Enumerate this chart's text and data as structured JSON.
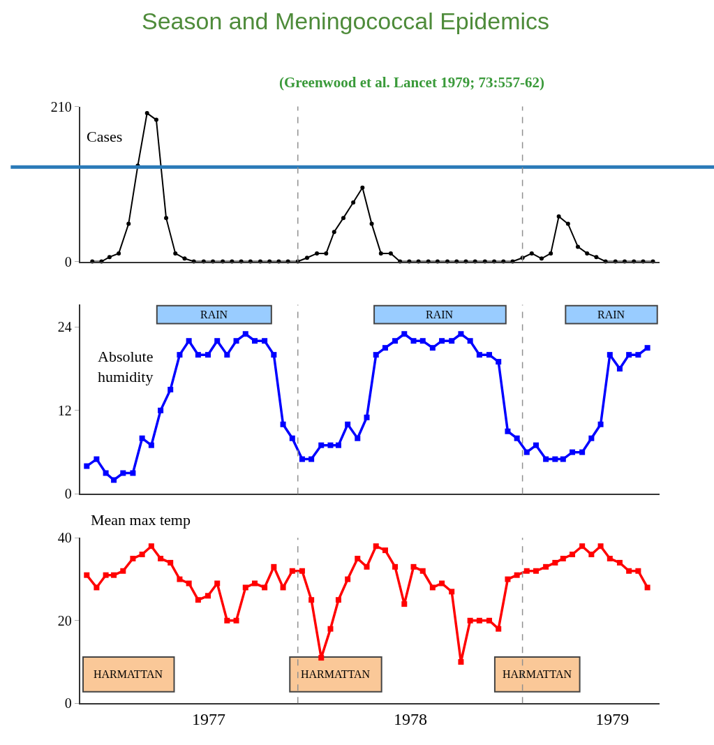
{
  "chart_data": [
    {
      "type": "line",
      "title": "Season and Meningococcal Epidemics",
      "subtitle": "(Greenwood et al. Lancet 1979; 73:557-62)",
      "ylabel": "Cases",
      "x": [
        "1977-02-01",
        "1977-02-16",
        "1977-03-01",
        "1977-03-16",
        "1977-04-01",
        "1977-04-16",
        "1977-05-01",
        "1977-05-16",
        "1977-06-01",
        "1977-06-16",
        "1977-07-01",
        "1977-07-16",
        "1977-08-01",
        "1977-08-16",
        "1977-09-01",
        "1977-09-16",
        "1977-10-01",
        "1977-10-16",
        "1977-11-01",
        "1977-11-16",
        "1977-12-01",
        "1977-12-16",
        "1978-01-01",
        "1978-01-16",
        "1978-02-01",
        "1978-02-16",
        "1978-03-01",
        "1978-03-16",
        "1978-04-01",
        "1978-04-16",
        "1978-05-01",
        "1978-05-16",
        "1978-06-01",
        "1978-06-16",
        "1978-07-01",
        "1978-07-16",
        "1978-08-01",
        "1978-08-16",
        "1978-09-01",
        "1978-09-16",
        "1978-10-01",
        "1978-10-16",
        "1978-11-01",
        "1978-11-16",
        "1978-12-01",
        "1978-12-16",
        "1979-01-01",
        "1979-01-16",
        "1979-02-01",
        "1979-02-16",
        "1979-03-01",
        "1979-03-16",
        "1979-04-01",
        "1979-04-16",
        "1979-05-01",
        "1979-05-16",
        "1979-06-01",
        "1979-06-16",
        "1979-07-01",
        "1979-07-16",
        "1979-08-01"
      ],
      "series": [
        {
          "color": "#000000",
          "values": [
            0,
            0,
            6,
            11,
            51,
            130,
            201,
            192,
            59,
            11,
            4,
            0,
            0,
            0,
            0,
            0,
            0,
            0,
            0,
            0,
            0,
            0,
            0,
            5,
            11,
            11,
            40,
            59,
            80,
            100,
            51,
            11,
            11,
            0,
            0,
            0,
            0,
            0,
            0,
            0,
            0,
            0,
            0,
            0,
            0,
            0,
            5,
            11,
            4,
            11,
            61,
            51,
            20,
            11,
            6,
            0,
            0,
            0,
            0,
            0,
            0
          ]
        }
      ],
      "marker": "circle",
      "line_style": "solid",
      "xlim": [
        "1977-01-12",
        "1979-08-12"
      ],
      "ylim": [
        0,
        210
      ],
      "yticks": [
        0,
        210
      ],
      "tick_labels": "y",
      "ref_lines": [
        {
          "axis": "y",
          "value": 128,
          "label": null,
          "color": "#2a7ab8",
          "line_style": "solid"
        },
        {
          "axis": "x",
          "value": "1978-01-01",
          "label": null,
          "color": "#909090",
          "line_style": "dashed"
        },
        {
          "axis": "x",
          "value": "1979-01-01",
          "label": null,
          "color": "#909090",
          "line_style": "dashed"
        }
      ]
    },
    {
      "type": "line",
      "ylabel": "Absolute humidity",
      "x": [
        "1977-01-23",
        "1977-02-08",
        "1977-02-23",
        "1977-03-08",
        "1977-03-23",
        "1977-04-08",
        "1977-04-23",
        "1977-05-08",
        "1977-05-23",
        "1977-06-08",
        "1977-06-23",
        "1977-07-08",
        "1977-07-23",
        "1977-08-08",
        "1977-08-23",
        "1977-09-08",
        "1977-09-23",
        "1977-10-08",
        "1977-10-23",
        "1977-11-08",
        "1977-11-23",
        "1977-12-08",
        "1977-12-23",
        "1978-01-08",
        "1978-01-23",
        "1978-02-08",
        "1978-02-23",
        "1978-03-08",
        "1978-03-23",
        "1978-04-08",
        "1978-04-23",
        "1978-05-08",
        "1978-05-23",
        "1978-06-08",
        "1978-06-23",
        "1978-07-08",
        "1978-07-23",
        "1978-08-08",
        "1978-08-23",
        "1978-09-08",
        "1978-09-23",
        "1978-10-08",
        "1978-10-23",
        "1978-11-08",
        "1978-11-23",
        "1978-12-08",
        "1978-12-23",
        "1979-01-08",
        "1979-01-23",
        "1979-02-08",
        "1979-02-23",
        "1979-03-08",
        "1979-03-23",
        "1979-04-08",
        "1979-04-23",
        "1979-05-08",
        "1979-05-23",
        "1979-06-08",
        "1979-06-23",
        "1979-07-08",
        "1979-07-23"
      ],
      "series": [
        {
          "color": "#0000ff",
          "values": [
            4,
            5,
            3,
            2,
            3,
            3,
            8,
            7,
            12,
            15,
            20,
            22,
            20,
            20,
            22,
            20,
            22,
            23,
            22,
            22,
            20,
            10,
            8,
            5,
            5,
            7,
            7,
            7,
            10,
            8,
            11,
            20,
            21,
            22,
            23,
            22,
            22,
            21,
            22,
            22,
            23,
            22,
            20,
            20,
            19,
            9,
            8,
            6,
            7,
            5,
            5,
            5,
            6,
            6,
            8,
            10,
            20,
            18,
            20,
            20,
            21
          ]
        }
      ],
      "marker": "square",
      "line_style": "solid",
      "xlim": [
        "1977-01-12",
        "1979-08-12"
      ],
      "ylim": [
        0,
        27.2
      ],
      "yticks": [
        0,
        12,
        24
      ],
      "tick_labels": "y",
      "ref_lines": [
        {
          "axis": "x",
          "value": "1978-01-01",
          "label": null,
          "color": "#909090",
          "line_style": "dashed"
        },
        {
          "axis": "x",
          "value": "1979-01-01",
          "label": null,
          "color": "#909090",
          "line_style": "dashed"
        }
      ],
      "bands": [
        {
          "axis": "x",
          "from": "1977-05-17",
          "to": "1977-11-19",
          "label": "RAIN",
          "color": "#99ccff"
        },
        {
          "axis": "x",
          "from": "1978-05-05",
          "to": "1978-12-05",
          "label": "RAIN",
          "color": "#99ccff"
        },
        {
          "axis": "x",
          "from": "1979-03-12",
          "to": "1979-08-08",
          "label": "RAIN",
          "color": "#99ccff"
        }
      ]
    },
    {
      "type": "line",
      "ylabel": "Mean max temp",
      "x": [
        "1977-01-23",
        "1977-02-08",
        "1977-02-23",
        "1977-03-08",
        "1977-03-23",
        "1977-04-08",
        "1977-04-23",
        "1977-05-08",
        "1977-05-23",
        "1977-06-08",
        "1977-06-23",
        "1977-07-08",
        "1977-07-23",
        "1977-08-08",
        "1977-08-23",
        "1977-09-08",
        "1977-09-23",
        "1977-10-08",
        "1977-10-23",
        "1977-11-08",
        "1977-11-23",
        "1977-12-08",
        "1977-12-23",
        "1978-01-08",
        "1978-01-23",
        "1978-02-08",
        "1978-02-23",
        "1978-03-08",
        "1978-03-23",
        "1978-04-08",
        "1978-04-23",
        "1978-05-08",
        "1978-05-23",
        "1978-06-08",
        "1978-06-23",
        "1978-07-08",
        "1978-07-23",
        "1978-08-08",
        "1978-08-23",
        "1978-09-08",
        "1978-09-23",
        "1978-10-08",
        "1978-10-23",
        "1978-11-08",
        "1978-11-23",
        "1978-12-08",
        "1978-12-23",
        "1979-01-08",
        "1979-01-23",
        "1979-02-08",
        "1979-02-23",
        "1979-03-08",
        "1979-03-23",
        "1979-04-08",
        "1979-04-23",
        "1979-05-08",
        "1979-05-23",
        "1979-06-08",
        "1979-06-23",
        "1979-07-08",
        "1979-07-23"
      ],
      "series": [
        {
          "color": "#ff0000",
          "values": [
            31,
            28,
            31,
            31,
            32,
            35,
            36,
            38,
            35,
            34,
            30,
            29,
            25,
            26,
            29,
            20,
            20,
            28,
            29,
            28,
            33,
            28,
            32,
            32,
            25,
            11,
            18,
            25,
            30,
            35,
            33,
            38,
            37,
            33,
            24,
            33,
            32,
            28,
            29,
            27,
            10,
            20,
            20,
            20,
            18,
            30,
            31,
            32,
            32,
            33,
            34,
            35,
            36,
            38,
            36,
            38,
            35,
            34,
            32,
            32,
            28
          ]
        }
      ],
      "marker": "square",
      "line_style": "solid",
      "xlim": [
        "1977-01-12",
        "1979-08-12"
      ],
      "xticks": [
        {
          "value": "1977-08-09",
          "label": "1977"
        },
        {
          "value": "1978-07-03",
          "label": "1978"
        },
        {
          "value": "1979-05-27",
          "label": "1979"
        }
      ],
      "ylim": [
        0,
        40
      ],
      "yticks": [
        0,
        20,
        40
      ],
      "ref_lines": [
        {
          "axis": "x",
          "value": "1978-01-01",
          "label": null,
          "color": "#909090",
          "line_style": "dashed"
        },
        {
          "axis": "x",
          "value": "1979-01-01",
          "label": null,
          "color": "#909090",
          "line_style": "dashed"
        }
      ],
      "bands": [
        {
          "axis": "x",
          "from": "1977-01-17",
          "to": "1977-06-14",
          "label": "HARMATTAN",
          "color": "#fac898"
        },
        {
          "axis": "x",
          "from": "1977-12-19",
          "to": "1978-05-17",
          "label": "HARMATTAN",
          "color": "#fac898"
        },
        {
          "axis": "x",
          "from": "1978-11-17",
          "to": "1979-04-04",
          "label": "HARMATTAN",
          "color": "#fac898"
        }
      ]
    }
  ]
}
